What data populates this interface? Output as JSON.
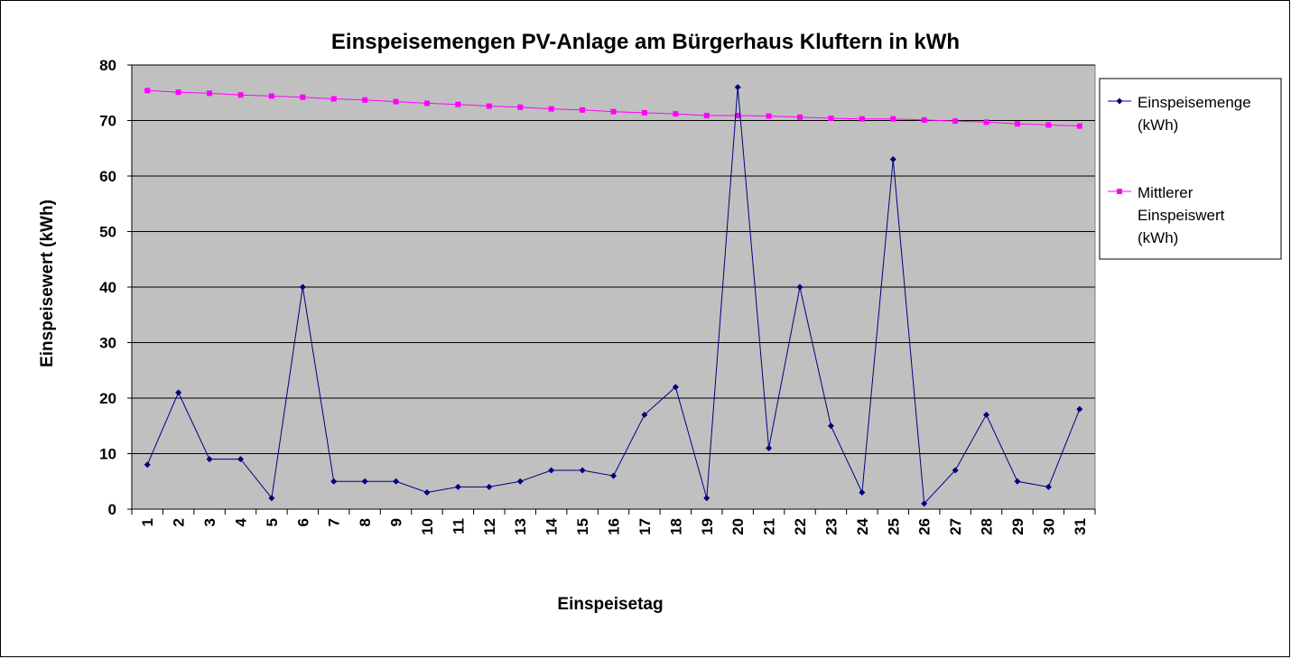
{
  "chart_data": {
    "type": "line",
    "title": "Einspeisemengen PV-Anlage am Bürgerhaus Kluftern in kWh",
    "xlabel": "Einspeisetag",
    "ylabel": "Einspeisewert (kWh)",
    "ylim": [
      0,
      80
    ],
    "yticks": [
      "0",
      "10",
      "20",
      "30",
      "40",
      "50",
      "60",
      "70",
      "80"
    ],
    "categories": [
      "1",
      "2",
      "3",
      "4",
      "5",
      "6",
      "7",
      "8",
      "9",
      "10",
      "11",
      "12",
      "13",
      "14",
      "15",
      "16",
      "17",
      "18",
      "19",
      "20",
      "21",
      "22",
      "23",
      "24",
      "25",
      "26",
      "27",
      "28",
      "29",
      "30",
      "31"
    ],
    "grid": "horizontal",
    "legend_position": "right",
    "plot_background": "#c0c0c0",
    "series": [
      {
        "name": "Einspeisemenge (kWh)",
        "legend_lines": [
          "Einspeisemenge",
          "(kWh)"
        ],
        "color": "#000080",
        "marker": "diamond",
        "values": [
          8,
          21,
          9,
          9,
          2,
          40,
          5,
          5,
          5,
          3,
          4,
          4,
          5,
          7,
          7,
          6,
          17,
          22,
          2,
          76,
          11,
          40,
          15,
          3,
          63,
          1,
          7,
          17,
          5,
          4,
          18
        ]
      },
      {
        "name": "Mittlerer Einspeiswert (kWh)",
        "legend_lines": [
          "Mittlerer",
          "Einspeiswert",
          "(kWh)"
        ],
        "color": "#ff00ff",
        "marker": "square",
        "values": [
          75.4,
          75.1,
          74.9,
          74.6,
          74.4,
          74.2,
          73.9,
          73.7,
          73.4,
          73.1,
          72.9,
          72.6,
          72.4,
          72.1,
          71.9,
          71.6,
          71.4,
          71.2,
          70.9,
          70.9,
          70.8,
          70.6,
          70.4,
          70.3,
          70.3,
          70.1,
          69.9,
          69.7,
          69.4,
          69.2,
          69.0
        ]
      }
    ]
  }
}
